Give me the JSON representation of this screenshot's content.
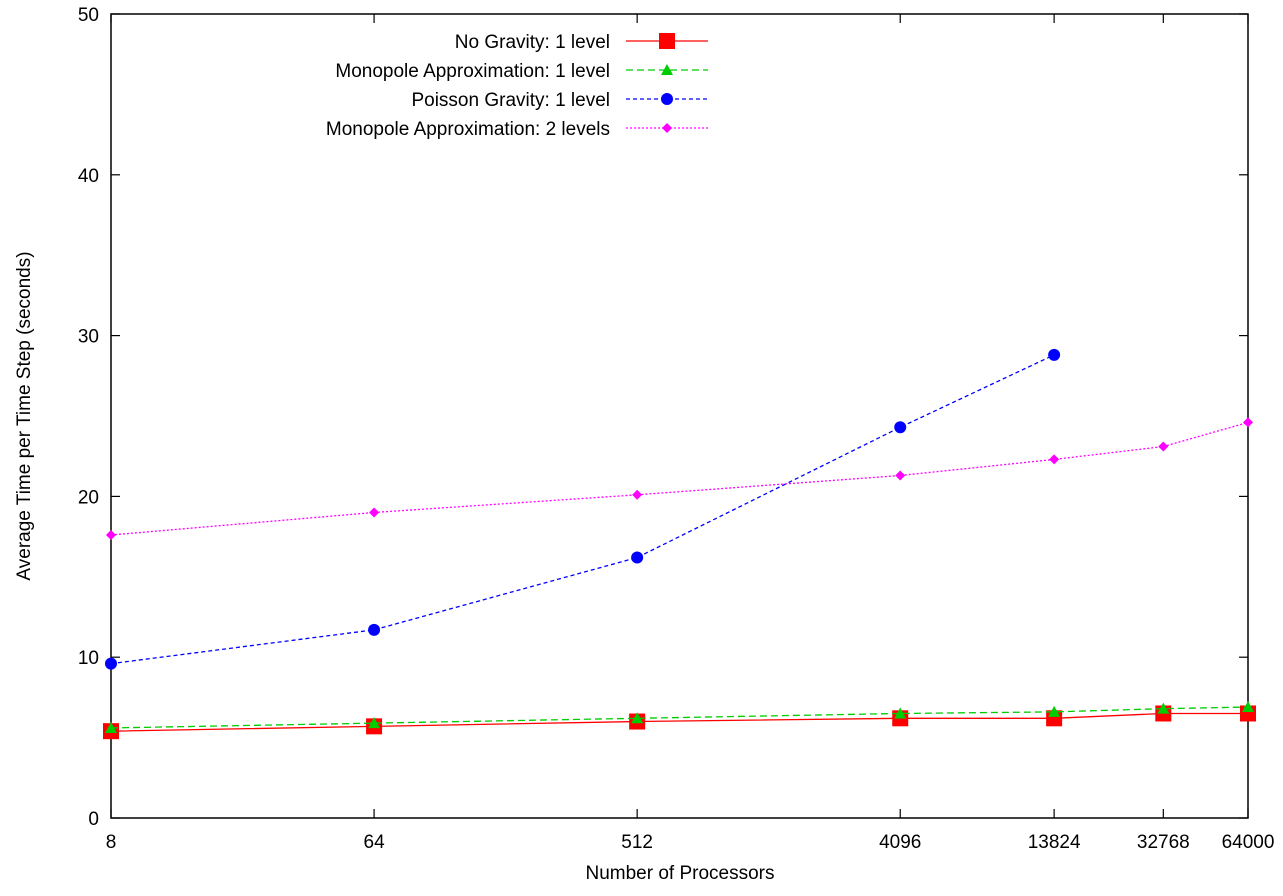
{
  "chart_data": {
    "type": "line",
    "title": "",
    "xlabel": "Number of Processors",
    "ylabel": "Average Time per Time Step (seconds)",
    "x_scale": "log",
    "x": [
      8,
      64,
      512,
      4096,
      13824,
      32768,
      64000
    ],
    "x_tick_labels": [
      "8",
      "64",
      "512",
      "4096",
      "13824",
      "32768",
      "64000"
    ],
    "ylim": [
      0,
      50
    ],
    "y_ticks": [
      0,
      10,
      20,
      30,
      40,
      50
    ],
    "grid": false,
    "legend_position": "top-left",
    "series": [
      {
        "name": "No Gravity: 1 level",
        "color": "#ff0000",
        "dash": "solid",
        "marker": "square",
        "x": [
          8,
          64,
          512,
          4096,
          13824,
          32768,
          64000
        ],
        "values": [
          5.4,
          5.7,
          6.0,
          6.2,
          6.2,
          6.5,
          6.5
        ]
      },
      {
        "name": "Monopole Approximation: 1 level",
        "color": "#00cc00",
        "dash": "dashed",
        "marker": "triangle",
        "x": [
          8,
          64,
          512,
          4096,
          13824,
          32768,
          64000
        ],
        "values": [
          5.6,
          5.9,
          6.2,
          6.5,
          6.6,
          6.8,
          6.9
        ]
      },
      {
        "name": "Poisson Gravity: 1 level",
        "color": "#0000ff",
        "dash": "short-dash",
        "marker": "circle",
        "x": [
          8,
          64,
          512,
          4096,
          13824
        ],
        "values": [
          9.6,
          11.7,
          16.2,
          24.3,
          28.8
        ]
      },
      {
        "name": "Monopole Approximation: 2 levels",
        "color": "#ff00ff",
        "dash": "dotted",
        "marker": "diamond",
        "x": [
          8,
          64,
          512,
          4096,
          13824,
          32768,
          64000
        ],
        "values": [
          17.6,
          19.0,
          20.1,
          21.3,
          22.3,
          23.1,
          24.6
        ]
      }
    ]
  }
}
